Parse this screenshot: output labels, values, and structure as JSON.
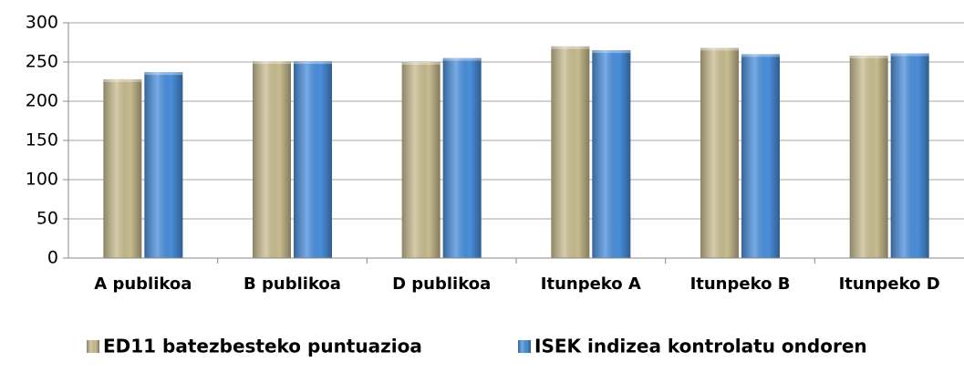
{
  "chart_data": {
    "type": "bar",
    "categories": [
      "A publikoa",
      "B publikoa",
      "D publikoa",
      "Itunpeko A",
      "Itunpeko B",
      "Itunpeko D"
    ],
    "series": [
      {
        "name": "ED11 batezbesteko puntuazioa",
        "color": "#c8bc90",
        "values": [
          228,
          251,
          250,
          270,
          268,
          258
        ]
      },
      {
        "name": "ISEK indizea kontrolatu ondoren",
        "color": "#4a8fdc",
        "values": [
          237,
          251,
          255,
          265,
          260,
          261
        ]
      }
    ],
    "ylim": [
      0,
      300
    ],
    "yticks": [
      0,
      50,
      100,
      150,
      200,
      250,
      300
    ],
    "grid": true
  }
}
